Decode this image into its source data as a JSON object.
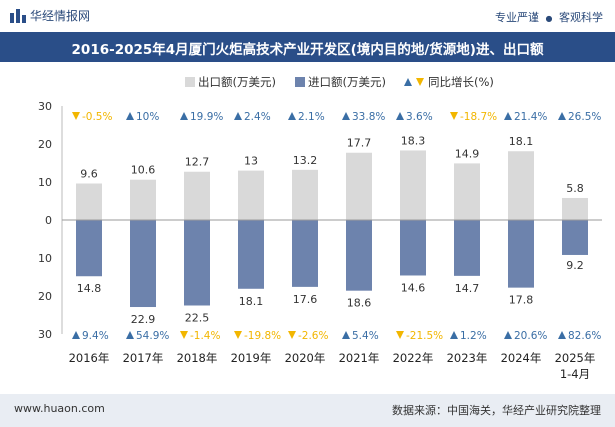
{
  "header": {
    "brand": "华经情报网",
    "tagline_left": "专业严谨",
    "tagline_sep": "●",
    "tagline_right": "客观科学"
  },
  "footer": {
    "website": "www.huaon.com",
    "source": "数据来源：中国海关，华经产业研究院整理"
  },
  "colors": {
    "export": "#d9d9d9",
    "import": "#6d83ad",
    "up": "#3a6ea5",
    "down": "#f2b600",
    "title_bg": "#2a4e88"
  },
  "chart_data": {
    "type": "bar",
    "title": "2016-2025年4月厦门火炬高技术产业开发区(境内目的地/货源地)进、出口额",
    "categories": [
      "2016年",
      "2017年",
      "2018年",
      "2019年",
      "2020年",
      "2021年",
      "2022年",
      "2023年",
      "2024年",
      "2025年\n1-4月"
    ],
    "legend": {
      "export": "出口额(万美元)",
      "import": "进口额(万美元)",
      "growth": "同比增长(%)",
      "placement": "top"
    },
    "series": [
      {
        "name": "出口额(万美元)",
        "values": [
          9.6,
          10.6,
          12.7,
          13,
          13.2,
          17.7,
          18.3,
          14.9,
          18.1,
          5.8
        ]
      },
      {
        "name": "进口额(万美元)",
        "values": [
          14.8,
          22.9,
          22.5,
          18.1,
          17.6,
          18.6,
          14.6,
          14.7,
          17.8,
          9.2
        ]
      }
    ],
    "export_growth": [
      "-0.5%",
      "10%",
      "19.9%",
      "2.4%",
      "2.1%",
      "33.8%",
      "3.6%",
      "-18.7%",
      "21.4%",
      "26.5%"
    ],
    "import_growth": [
      "9.4%",
      "54.9%",
      "-1.4%",
      "-19.8%",
      "-2.6%",
      "5.4%",
      "-21.5%",
      "1.2%",
      "20.6%",
      "82.6%"
    ],
    "yticks": [
      "30",
      "20",
      "10",
      "0",
      "10",
      "20",
      "30"
    ],
    "ylim": [
      -30,
      30
    ],
    "grid": false
  }
}
